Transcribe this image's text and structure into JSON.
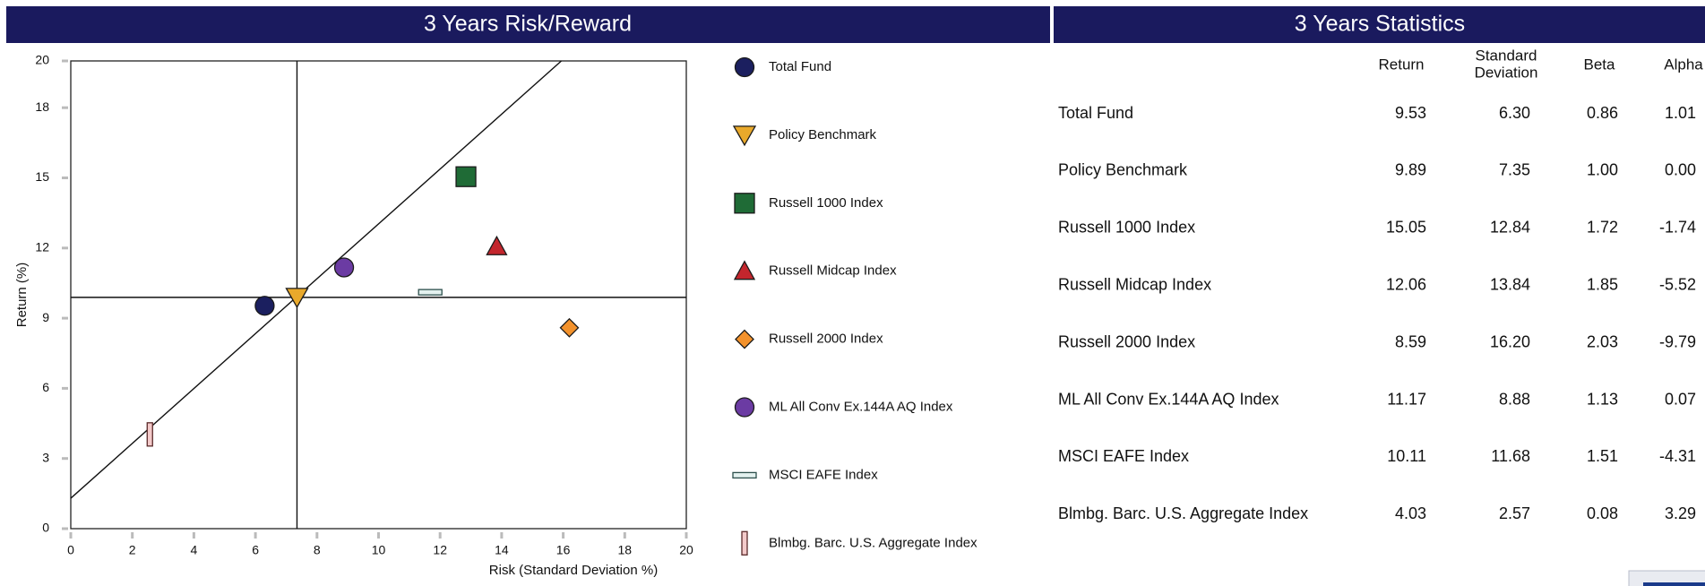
{
  "chart_data": {
    "type": "scatter",
    "title": "3 Years Risk/Reward",
    "xlabel": "Risk (Standard Deviation %)",
    "ylabel": "Return (%)",
    "xlim": [
      0,
      20
    ],
    "xticks": [
      0,
      2,
      4,
      6,
      8,
      10,
      12,
      14,
      16,
      18,
      20
    ],
    "ylim": [
      0,
      20
    ],
    "yticks": [
      0,
      3,
      6,
      9,
      12,
      15,
      18,
      20
    ],
    "crosshair_series": 1,
    "reference_line": {
      "x": [
        0,
        15.94
      ],
      "values": [
        1.3,
        20
      ]
    },
    "series": [
      {
        "name": "Total Fund",
        "color": "#1b1f5f",
        "marker": "circle",
        "x": [
          6.3
        ],
        "values": [
          9.53
        ]
      },
      {
        "name": "Policy Benchmark",
        "color": "#e9a92b",
        "marker": "triangle-down",
        "x": [
          7.35
        ],
        "values": [
          9.89
        ]
      },
      {
        "name": "Russell 1000 Index",
        "color": "#1f6b36",
        "marker": "square",
        "x": [
          12.84
        ],
        "values": [
          15.05
        ]
      },
      {
        "name": "Russell Midcap Index",
        "color": "#c3262d",
        "marker": "triangle",
        "x": [
          13.84
        ],
        "values": [
          12.06
        ]
      },
      {
        "name": "Russell 2000 Index",
        "color": "#f3922c",
        "marker": "diamond",
        "x": [
          16.2
        ],
        "values": [
          8.59
        ]
      },
      {
        "name": "ML All Conv Ex.144A AQ Index",
        "color": "#6b3ba3",
        "marker": "circle",
        "x": [
          8.88
        ],
        "values": [
          11.17
        ]
      },
      {
        "name": "MSCI EAFE Index",
        "color": "#e4f1ef",
        "marker": "hbar",
        "x": [
          11.68
        ],
        "values": [
          10.11
        ]
      },
      {
        "name": "Blmbg. Barc. U.S. Aggregate Index",
        "color": "#f3caca",
        "marker": "vbar",
        "x": [
          2.57
        ],
        "values": [
          4.03
        ]
      }
    ]
  },
  "table": {
    "title": "3 Years Statistics",
    "columns": [
      [
        "Return"
      ],
      [
        "Standard",
        "Deviation"
      ],
      [
        "Beta"
      ],
      [
        "Alpha"
      ]
    ],
    "rows": [
      {
        "name": "Total Fund",
        "cells": [
          "9.53",
          "6.30",
          "0.86",
          "1.01"
        ]
      },
      {
        "name": "Policy Benchmark",
        "cells": [
          "9.89",
          "7.35",
          "1.00",
          "0.00"
        ]
      },
      {
        "name": "Russell 1000 Index",
        "cells": [
          "15.05",
          "12.84",
          "1.72",
          "-1.74"
        ]
      },
      {
        "name": "Russell Midcap Index",
        "cells": [
          "12.06",
          "13.84",
          "1.85",
          "-5.52"
        ]
      },
      {
        "name": "Russell 2000 Index",
        "cells": [
          "8.59",
          "16.20",
          "2.03",
          "-9.79"
        ]
      },
      {
        "name": "ML All Conv Ex.144A AQ Index",
        "cells": [
          "11.17",
          "8.88",
          "1.13",
          "0.07"
        ]
      },
      {
        "name": "MSCI EAFE Index",
        "cells": [
          "10.11",
          "11.68",
          "1.51",
          "-4.31"
        ]
      },
      {
        "name": "Blmbg. Barc. U.S. Aggregate Index",
        "cells": [
          "4.03",
          "2.57",
          "0.08",
          "3.29"
        ]
      }
    ]
  }
}
